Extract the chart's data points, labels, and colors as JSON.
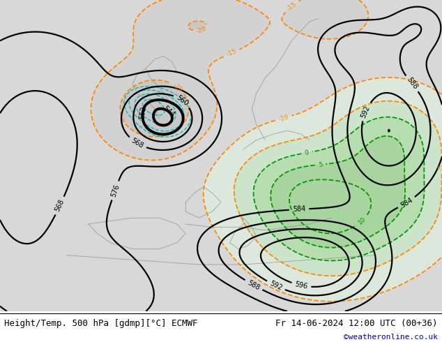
{
  "title_left": "Height/Temp. 500 hPa [gdmp][°C] ECMWF",
  "title_right": "Fr 14-06-2024 12:00 UTC (00+36)",
  "credit": "©weatheronline.co.uk",
  "bg_color_light_green": "#b8ddb0",
  "bg_color_mid_green": "#c8e8c0",
  "bg_color_gray": "#d0d0d0",
  "bg_color_white_gray": "#e0e0e0",
  "contour_color_z500": "#000000",
  "contour_color_temp_neg": "#ff8800",
  "contour_color_temp_pos": "#009900",
  "contour_color_cyan": "#00bbbb",
  "credit_color": "#0000cc",
  "bottom_bar_color": "#ffffff",
  "font_size_title": 9,
  "font_size_credit": 8
}
